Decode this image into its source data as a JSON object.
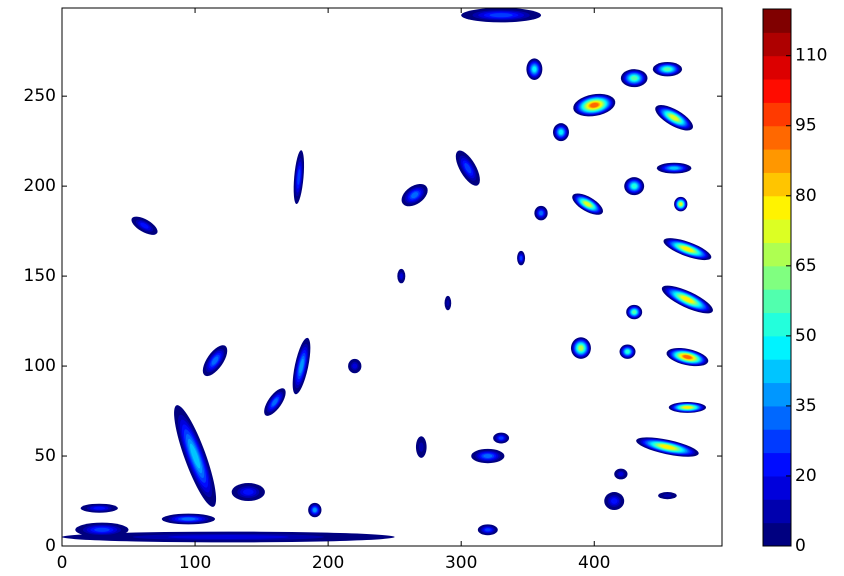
{
  "chart_data": {
    "type": "contourf",
    "xlim": [
      0,
      496
    ],
    "ylim": [
      0,
      299
    ],
    "xticks": [
      0,
      100,
      200,
      300,
      400
    ],
    "yticks": [
      0,
      50,
      100,
      150,
      200,
      250
    ],
    "colormap": "jet",
    "colorbar": {
      "levels": [
        0,
        10,
        15,
        20,
        25,
        30,
        35,
        40,
        45,
        50,
        55,
        60,
        65,
        70,
        75,
        80,
        85,
        90,
        95,
        100,
        105,
        110,
        115,
        120
      ],
      "ticks": [
        0,
        20,
        35,
        50,
        65,
        80,
        95,
        110
      ]
    },
    "blobs": [
      {
        "x": 125,
        "y": 5,
        "w": 250,
        "h": 6,
        "angle": 0,
        "value": 20
      },
      {
        "x": 30,
        "y": 9,
        "w": 40,
        "h": 8,
        "angle": 0,
        "value": 30
      },
      {
        "x": 28,
        "y": 21,
        "w": 28,
        "h": 5,
        "angle": 0,
        "value": 25
      },
      {
        "x": 100,
        "y": 50,
        "w": 16,
        "h": 60,
        "angle": -20,
        "value": 45
      },
      {
        "x": 95,
        "y": 15,
        "w": 40,
        "h": 6,
        "angle": 0,
        "value": 35
      },
      {
        "x": 140,
        "y": 30,
        "w": 25,
        "h": 10,
        "angle": 0,
        "value": 25
      },
      {
        "x": 190,
        "y": 20,
        "w": 10,
        "h": 8,
        "angle": 0,
        "value": 40
      },
      {
        "x": 115,
        "y": 103,
        "w": 12,
        "h": 20,
        "angle": 35,
        "value": 35
      },
      {
        "x": 180,
        "y": 100,
        "w": 10,
        "h": 32,
        "angle": 12,
        "value": 40
      },
      {
        "x": 160,
        "y": 80,
        "w": 10,
        "h": 18,
        "angle": 35,
        "value": 35
      },
      {
        "x": 178,
        "y": 205,
        "w": 7,
        "h": 30,
        "angle": 5,
        "value": 30
      },
      {
        "x": 62,
        "y": 178,
        "w": 22,
        "h": 7,
        "angle": 30,
        "value": 25
      },
      {
        "x": 265,
        "y": 195,
        "w": 22,
        "h": 10,
        "angle": -35,
        "value": 35
      },
      {
        "x": 305,
        "y": 210,
        "w": 12,
        "h": 22,
        "angle": -30,
        "value": 30
      },
      {
        "x": 400,
        "y": 245,
        "w": 32,
        "h": 12,
        "angle": -10,
        "value": 95
      },
      {
        "x": 460,
        "y": 238,
        "w": 32,
        "h": 9,
        "angle": 30,
        "value": 75
      },
      {
        "x": 470,
        "y": 165,
        "w": 38,
        "h": 8,
        "angle": 20,
        "value": 80
      },
      {
        "x": 470,
        "y": 137,
        "w": 42,
        "h": 9,
        "angle": 25,
        "value": 80
      },
      {
        "x": 470,
        "y": 105,
        "w": 32,
        "h": 9,
        "angle": 12,
        "value": 95
      },
      {
        "x": 470,
        "y": 77,
        "w": 28,
        "h": 6,
        "angle": 0,
        "value": 80
      },
      {
        "x": 455,
        "y": 55,
        "w": 48,
        "h": 8,
        "angle": 12,
        "value": 80
      },
      {
        "x": 395,
        "y": 190,
        "w": 26,
        "h": 8,
        "angle": 30,
        "value": 75
      },
      {
        "x": 430,
        "y": 260,
        "w": 20,
        "h": 10,
        "angle": 0,
        "value": 60
      },
      {
        "x": 455,
        "y": 265,
        "w": 22,
        "h": 8,
        "angle": 0,
        "value": 60
      },
      {
        "x": 390,
        "y": 110,
        "w": 15,
        "h": 12,
        "angle": 0,
        "value": 70
      },
      {
        "x": 430,
        "y": 130,
        "w": 12,
        "h": 8,
        "angle": 0,
        "value": 60
      },
      {
        "x": 425,
        "y": 108,
        "w": 12,
        "h": 8,
        "angle": 0,
        "value": 55
      },
      {
        "x": 430,
        "y": 200,
        "w": 15,
        "h": 10,
        "angle": 0,
        "value": 55
      },
      {
        "x": 465,
        "y": 190,
        "w": 10,
        "h": 8,
        "angle": 0,
        "value": 75
      },
      {
        "x": 460,
        "y": 210,
        "w": 26,
        "h": 6,
        "angle": 0,
        "value": 45
      },
      {
        "x": 355,
        "y": 265,
        "w": 12,
        "h": 12,
        "angle": 0,
        "value": 50
      },
      {
        "x": 320,
        "y": 50,
        "w": 25,
        "h": 8,
        "angle": 0,
        "value": 35
      },
      {
        "x": 330,
        "y": 60,
        "w": 12,
        "h": 6,
        "angle": 0,
        "value": 30
      },
      {
        "x": 320,
        "y": 9,
        "w": 15,
        "h": 6,
        "angle": 0,
        "value": 30
      },
      {
        "x": 415,
        "y": 25,
        "w": 15,
        "h": 10,
        "angle": 0,
        "value": 25
      },
      {
        "x": 455,
        "y": 28,
        "w": 14,
        "h": 4,
        "angle": 0,
        "value": 15
      },
      {
        "x": 330,
        "y": 295,
        "w": 60,
        "h": 8,
        "angle": 0,
        "value": 30
      },
      {
        "x": 220,
        "y": 100,
        "w": 10,
        "h": 8,
        "angle": 0,
        "value": 20
      },
      {
        "x": 290,
        "y": 135,
        "w": 5,
        "h": 8,
        "angle": 0,
        "value": 15
      },
      {
        "x": 345,
        "y": 160,
        "w": 6,
        "h": 8,
        "angle": 0,
        "value": 30
      },
      {
        "x": 360,
        "y": 185,
        "w": 10,
        "h": 8,
        "angle": 0,
        "value": 35
      },
      {
        "x": 375,
        "y": 230,
        "w": 12,
        "h": 10,
        "angle": 0,
        "value": 50
      },
      {
        "x": 420,
        "y": 40,
        "w": 10,
        "h": 6,
        "angle": 0,
        "value": 20
      },
      {
        "x": 270,
        "y": 55,
        "w": 8,
        "h": 12,
        "angle": 0,
        "value": 15
      },
      {
        "x": 255,
        "y": 150,
        "w": 6,
        "h": 8,
        "angle": 0,
        "value": 20
      }
    ]
  }
}
